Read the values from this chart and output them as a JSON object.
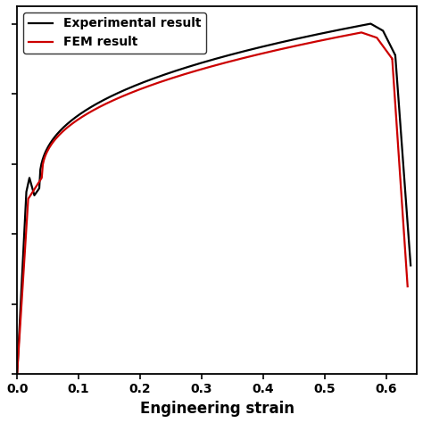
{
  "xlabel": "Engineering strain",
  "xlim": [
    0.0,
    0.65
  ],
  "ylim": [
    0.0,
    1.05
  ],
  "xticks": [
    0.0,
    0.1,
    0.2,
    0.3,
    0.4,
    0.5,
    0.6
  ],
  "experimental_color": "#000000",
  "fem_color": "#cc0000",
  "line_width": 1.6,
  "legend_labels": [
    "Experimental result",
    "FEM result"
  ],
  "xlabel_fontsize": 12,
  "legend_fontsize": 10,
  "tick_fontsize": 10
}
